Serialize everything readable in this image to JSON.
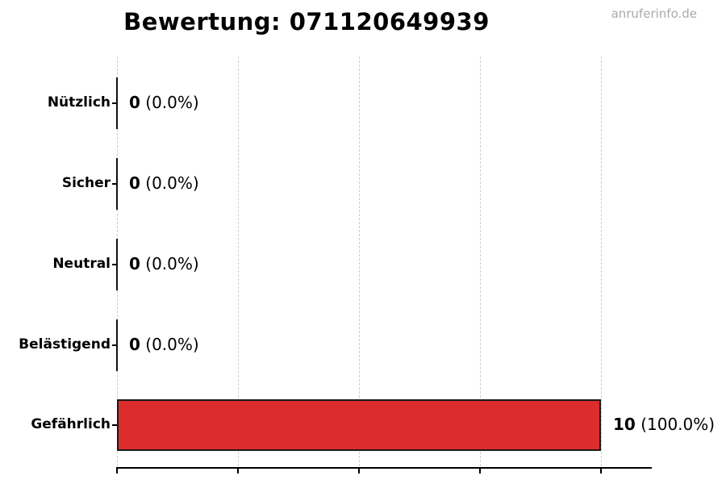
{
  "watermark": "anruferinfo.de",
  "chart_data": {
    "type": "bar",
    "orientation": "horizontal",
    "title": "Bewertung: 071120649939",
    "categories": [
      "Nützlich",
      "Sicher",
      "Neutral",
      "Belästigend",
      "Gefährlich"
    ],
    "values": [
      0,
      0,
      0,
      0,
      10
    ],
    "percentages": [
      0.0,
      0.0,
      0.0,
      0.0,
      100.0
    ],
    "value_labels": [
      {
        "count": "0",
        "pct": "(0.0%)"
      },
      {
        "count": "0",
        "pct": "(0.0%)"
      },
      {
        "count": "0",
        "pct": "(0.0%)"
      },
      {
        "count": "0",
        "pct": "(0.0%)"
      },
      {
        "count": "10",
        "pct": "(100.0%)"
      }
    ],
    "xlabel": "",
    "ylabel": "",
    "xlim": [
      0,
      11
    ],
    "xticks": [
      0,
      2.5,
      5,
      7.5,
      10
    ],
    "xtick_labels_visible": false,
    "grid": true,
    "grid_style": "dashed",
    "legend": "none",
    "colors": {
      "bar_fill": "#dd2c2c",
      "bar_edge": "#1a1a1a",
      "zero_bar": "#111111",
      "grid": "#cccccc",
      "axis": "#000000",
      "text": "#000000",
      "watermark": "#aaaaaa",
      "background": "#ffffff"
    }
  }
}
